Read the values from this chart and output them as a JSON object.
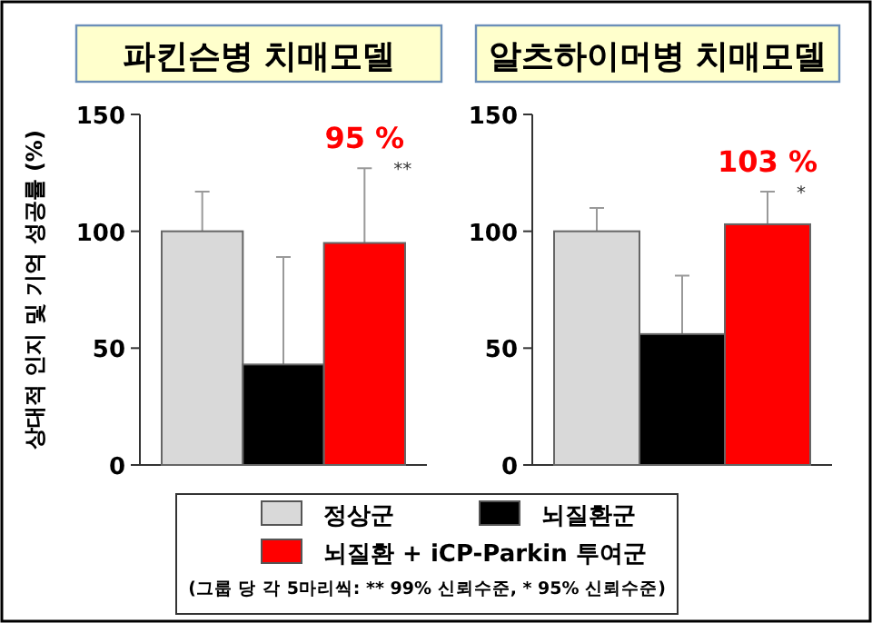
{
  "chart_data": [
    {
      "type": "bar",
      "title": "파킨슨병 치매모델",
      "ylabel": "상대적 인지 및 기억 성공률 (%)",
      "categories": [
        null,
        null,
        null
      ],
      "ylim": [
        0,
        150
      ],
      "yticks": [
        0,
        50,
        100,
        150
      ],
      "legend": "bottom",
      "series": [
        {
          "name": "정상군",
          "color": "#d9d9d9",
          "values": [
            100,
            null,
            null
          ],
          "errors": [
            [
              100,
              117
            ],
            null,
            null
          ]
        },
        {
          "name": "뇌질환군",
          "color": "#000000",
          "values": [
            null,
            43,
            null
          ],
          "errors": [
            null,
            [
              43,
              89
            ],
            null
          ]
        },
        {
          "name": "뇌질환 + iCP-Parkin 투여군",
          "color": "#ff0000",
          "values": [
            null,
            null,
            95
          ],
          "errors": [
            null,
            null,
            [
              95,
              127
            ]
          ],
          "value_labels": [
            null,
            null,
            "95 %"
          ]
        }
      ],
      "annotations": [
        "**",
        "(그룹 당 각 5마리씩: ** 99% 신뢰수준, * 95% 신뢰수준)"
      ]
    },
    {
      "type": "bar",
      "title": "알츠하이머병 치매모델",
      "categories": [
        null,
        null,
        null
      ],
      "ylim": [
        0,
        150
      ],
      "yticks": [
        0,
        50,
        100,
        150
      ],
      "series": [
        {
          "color": "#d9d9d9",
          "values": [
            100,
            null,
            null
          ],
          "errors": [
            [
              100,
              110
            ],
            null,
            null
          ]
        },
        {
          "color": "#000000",
          "values": [
            null,
            56,
            null
          ],
          "errors": [
            null,
            [
              56,
              81
            ],
            null
          ]
        },
        {
          "color": "#ff0000",
          "values": [
            null,
            null,
            103
          ],
          "errors": [
            null,
            null,
            [
              103,
              117
            ]
          ],
          "value_labels": [
            null,
            null,
            "103 %"
          ]
        }
      ],
      "annotations": [
        "*"
      ]
    }
  ]
}
